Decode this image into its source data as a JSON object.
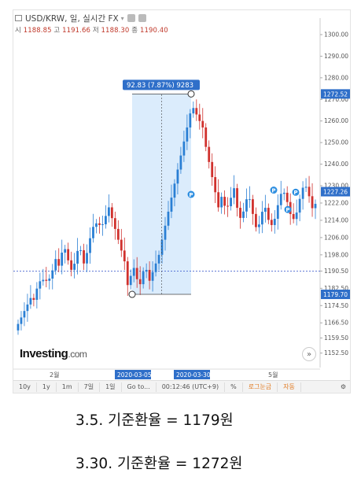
{
  "header": {
    "symbol": "USD/KRW, 일, 실시간 FX",
    "open_label": "시",
    "open": "1188.85",
    "high_label": "고",
    "high": "1191.66",
    "low_label": "저",
    "low": "1188.30",
    "close_label": "종",
    "close": "1190.40"
  },
  "measure_label": "92.83 (7.87%) 9283",
  "price_badges": {
    "top": "1272.52",
    "current": "1227.26",
    "bottom": "1179.70"
  },
  "dashed_level": "1190.50",
  "date_badges": {
    "start": "2020-03-05",
    "end": "2020-03-30"
  },
  "x_ticks": [
    "2월",
    "5월"
  ],
  "logo": {
    "main": "Investing",
    "suffix": ".com"
  },
  "scroll_icon": "double-chevron-right-icon",
  "toolbar": {
    "items": [
      "10y",
      "1y",
      "1m",
      "7일",
      "1일",
      "Go to...",
      "00:12:46 (UTC+9)",
      "%",
      "로그눈금",
      "자동"
    ],
    "settings_icon": "gear-icon"
  },
  "captions": {
    "line1": "3.5. 기준환율  = 1179원",
    "line2": "3.30. 기준환율 = 1272원"
  },
  "colors": {
    "up": "#2a7fd4",
    "down": "#d0312d",
    "highlight": "#cfe5fb",
    "badge": "#2f6fc9"
  },
  "chart_data": {
    "type": "candlestick",
    "y_ticks": [
      1300,
      1290,
      1280,
      1270,
      1260,
      1250,
      1240,
      1230,
      1222,
      1214,
      1206,
      1198,
      1190.5,
      1182.5,
      1174.5,
      1166.5,
      1159.5,
      1152.5
    ],
    "ylim": [
      1148,
      1304
    ],
    "measure_range": {
      "low": 1179.7,
      "high": 1272.52
    }
  }
}
